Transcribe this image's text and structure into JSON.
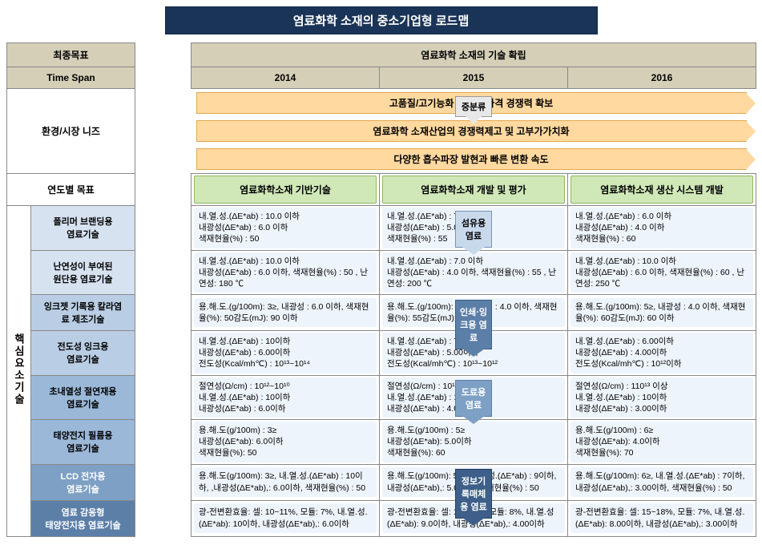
{
  "title": "염료화학 소재의 중소기업형 로드맵",
  "header": {
    "final_goal": "최종목표",
    "time_span": "Time Span",
    "tech_establish": "염료화학 소재의 기술 확립",
    "years": [
      "2014",
      "2015",
      "2016"
    ]
  },
  "left": {
    "needs": "환경/시장 니즈",
    "mid_category": "중분류",
    "yearly_goal": "연도별 목표",
    "core_label": "핵심요소기술"
  },
  "banners": [
    "고품질/고기능화 제품의 가격 경쟁력 확보",
    "염료화학 소재산업의 경쟁력제고 및 고부가가치화",
    "다양한 흡수파장 발현과 빠른 변환 속도"
  ],
  "yearly_goals": [
    "염료화학소재 기반기술",
    "염료화학소재 개발 및 평가",
    "염료화학소재 생산 시스템 개발"
  ],
  "cats": [
    {
      "label": "섬유용\n염료",
      "class": ""
    },
    {
      "label": "인쇄·잉\n크용 염\n료",
      "class": "dark"
    },
    {
      "label": "도료용\n염료",
      "class": "med"
    },
    {
      "label": "정보기\n록매체\n용 염료",
      "class": "deep"
    }
  ],
  "techs": [
    "폴리머 브랜딩용\n염료기술",
    "난연성이 부여된\n원단용 염료기술",
    "잉크젯 기록용 칼라염\n료 제조기술",
    "전도성 잉크용\n염료기술",
    "초내열성 절연재용\n염료기술",
    "태양전지 필름용\n염료기술",
    "LCD 전자용\n염료기술",
    "염료 감응형\n태양전지용 염료기술"
  ],
  "cells": {
    "r0": [
      "내.열.성.(ΔE*ab) : 10.0 이하\n내광성(ΔE*ab) :  6.0 이하\n색재현율(%) : 50",
      "내.열.성.(ΔE*ab) :  7.0 이하\n내광성(ΔE*ab) :  5.0 이하\n색재현율(%) : 55",
      "내.열.성.(ΔE*ab) :  6.0 이하\n내광성(ΔE*ab) :  4.0 이하\n색재현율(%) : 60"
    ],
    "r1": [
      "내.열.성.(ΔE*ab) : 10.0 이하\n내광성(ΔE*ab) : 6.0 이하, 색재현율(%) : 50 , 난연성: 180 ℃",
      "내.열.성.(ΔE*ab) : 7.0 이하\n내광성(ΔE*ab) :  4.0 이하, 색재현율(%) : 55 , 난연성:  200 ℃",
      "내.열.성.(ΔE*ab) : 10.0 이하\n내광성(ΔE*ab) : 6.0 이하, 색재현율(%) : 60 , 난연성:  250 ℃"
    ],
    "r2": [
      "용.해.도.(g/100m): 3≥, 내광성 : 6.0 이하, 색재현율(%): 50감도(mJ): 90 이하",
      "용.해.도.(g/100m): 4≥, 내광성 : 4.0 이하, 색재현율(%): 55감도(mJ): 70 이하",
      "용.해.도.(g/100m): 5≥, 내광성 : 4.0 이하, 색재현율(%): 60감도(mJ): 60 이하"
    ],
    "r3": [
      "내.열.성.(ΔE*ab) :  10이하\n내광성(ΔE*ab) :  6.00이하\n전도성(Kcal/mh℃) : 10¹³~10¹⁴",
      "내.열.성.(ΔE*ab) :  7.00이하\n내광성(ΔE*ab) :  5.00이하\n전도성(Kcal/mh℃) : 10¹³~10¹²",
      "내.열.성.(ΔE*ab) :  6.00이하\n내광성(ΔE*ab) :  4.00이하\n전도성(Kcal/mh℃) : 10¹²이하"
    ],
    "r4": [
      "절연성(Ω/cm) :  10¹²~10¹⁰\n내.열.성.(ΔE*ab) :  10이하\n내광성(ΔE*ab) : 6.0이하",
      "절연성(Ω/cm) :  10¹³~10¹²\n내.열.성.(ΔE*ab) :  10이하\n내광성(ΔE*ab) : 4.0이하",
      "절연성(Ω/cm) :  110¹³ 이상\n내.열.성.(ΔE*ab) :  10이하\n내광성(ΔE*ab) : 3.00이하"
    ],
    "r5": [
      "용.해.도(g/100m) : 3≥\n내광성(ΔE*ab): 6.0이하\n색재현율(%): 50",
      "용.해.도(g/100m) : 5≥\n내광성(ΔE*ab): 5.0이하\n색재현율(%): 60",
      "용.해.도(g/100m) : 6≥\n내광성(ΔE*ab): 4.0이하\n색재현율(%): 70"
    ],
    "r6": [
      "용.해.도(g/100m): 3≥, 내.열.성.(ΔE*ab) : 10이하, ,내광성(ΔE*ab),: 6.0이하, 색재현율(%) : 50",
      "용.해.도(g/100m): 5≥, 내.열.성.(ΔE*ab) : 9이하, 내광성(ΔE*ab),: 5.0이하, 색재현율(%) : 50",
      "용.해.도(g/100m): 6≥, 내.열.성.(ΔE*ab) : 7이하, 내광성(ΔE*ab),: 3.00이하, 색재현율(%) : 50"
    ],
    "r7": [
      "광-전변환효율: 셀: 10~11%, 모듈: 7%, 내.열.성.(ΔE*ab): 10이하, 내광성(ΔE*ab),: 6.0이하",
      "광-전변환효율: 셀: 12~15%, 모듈: 8%, 내.열.성 (ΔE*ab): 9.0이하, 내광성(ΔE*ab),: 4.00이하",
      "광-전변환효율: 셀: 15~18%, 모듈: 7%, 내.열.성.(ΔE*ab): 8.00이하, 내광성(ΔE*ab),: 3.00이하"
    ]
  },
  "colors": {
    "title_bg": "#1a3457",
    "header_bg": "#d5cfb8",
    "banner_bg": "#ffd9a0",
    "goal_bg": "#d0e8b8",
    "cell_bg": "#eef4fb"
  }
}
